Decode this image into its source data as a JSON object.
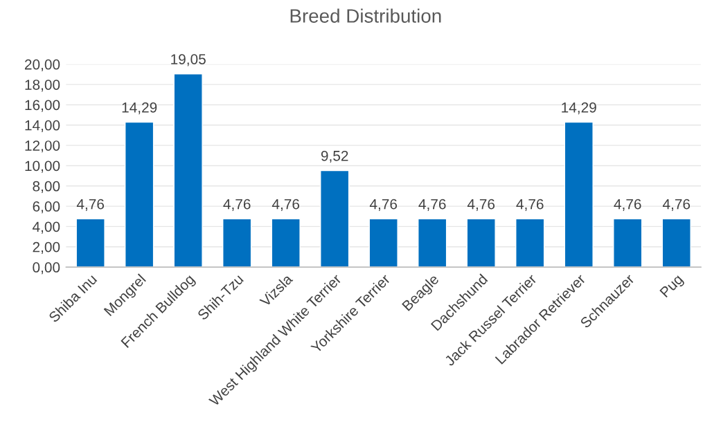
{
  "chart_data": {
    "type": "bar",
    "title": "Breed Distribution",
    "categories": [
      "Shiba Inu",
      "Mongrel",
      "French Bulldog",
      "Shih-Tzu",
      "Vizsla",
      "West Highland White Terrier",
      "Yorkshire Terrier",
      "Beagle",
      "Dachshund",
      "Jack Russel Terrier",
      "Labrador Retriever",
      "Schnauzer",
      "Pug"
    ],
    "values": [
      4.76,
      14.29,
      19.05,
      4.76,
      4.76,
      9.52,
      4.76,
      4.76,
      4.76,
      4.76,
      14.29,
      4.76,
      4.76
    ],
    "value_labels": [
      "4,76",
      "14,29",
      "19,05",
      "4,76",
      "4,76",
      "9,52",
      "4,76",
      "4,76",
      "4,76",
      "4,76",
      "14,29",
      "4,76",
      "4,76"
    ],
    "color": "#0070c0",
    "ylim": [
      0,
      20
    ],
    "yticks": [
      {
        "value": 0,
        "label": "0,00"
      },
      {
        "value": 2,
        "label": "2,00"
      },
      {
        "value": 4,
        "label": "4,00"
      },
      {
        "value": 6,
        "label": "6,00"
      },
      {
        "value": 8,
        "label": "8,00"
      },
      {
        "value": 10,
        "label": "10,00"
      },
      {
        "value": 12,
        "label": "12,00"
      },
      {
        "value": 14,
        "label": "14,00"
      },
      {
        "value": 16,
        "label": "16,00"
      },
      {
        "value": 18,
        "label": "18,00"
      },
      {
        "value": 20,
        "label": "20,00"
      }
    ],
    "grid": "y",
    "legend": false
  }
}
